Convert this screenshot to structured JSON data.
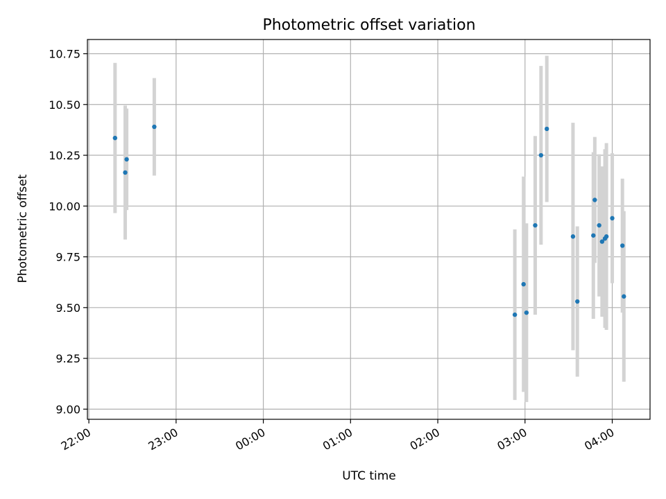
{
  "chart_data": {
    "type": "scatter",
    "title": "Photometric offset variation",
    "xlabel": "UTC time",
    "ylabel": "Photometric offset",
    "x_axis": {
      "kind": "time",
      "range": [
        "21:59",
        "04:26"
      ],
      "ticks": [
        "22:00",
        "23:00",
        "00:00",
        "01:00",
        "02:00",
        "03:00",
        "04:00"
      ]
    },
    "y_axis": {
      "range": [
        8.95,
        10.82
      ],
      "ticks": [
        "9.00",
        "9.25",
        "9.50",
        "9.75",
        "10.00",
        "10.25",
        "10.50",
        "10.75"
      ]
    },
    "grid": true,
    "colors": {
      "points": "#1f77b4",
      "errorbars": "#d3d3d3",
      "grid": "#b0b0b0"
    },
    "points": [
      {
        "t": "22:18",
        "y": 10.335,
        "err": 0.37
      },
      {
        "t": "22:25",
        "y": 10.165,
        "err": 0.33
      },
      {
        "t": "22:26",
        "y": 10.23,
        "err": 0.25
      },
      {
        "t": "22:45",
        "y": 10.39,
        "err": 0.24
      },
      {
        "t": "02:53",
        "y": 9.465,
        "err": 0.42
      },
      {
        "t": "02:59",
        "y": 9.615,
        "err": 0.53
      },
      {
        "t": "03:01",
        "y": 9.475,
        "err": 0.44
      },
      {
        "t": "03:07",
        "y": 9.905,
        "err": 0.44
      },
      {
        "t": "03:11",
        "y": 10.25,
        "err": 0.44
      },
      {
        "t": "03:15",
        "y": 10.38,
        "err": 0.36
      },
      {
        "t": "03:33",
        "y": 9.85,
        "err": 0.56
      },
      {
        "t": "03:36",
        "y": 9.53,
        "err": 0.37
      },
      {
        "t": "03:47",
        "y": 9.855,
        "err": 0.41
      },
      {
        "t": "03:48",
        "y": 10.03,
        "err": 0.31
      },
      {
        "t": "03:51",
        "y": 9.905,
        "err": 0.35
      },
      {
        "t": "03:53",
        "y": 9.825,
        "err": 0.37
      },
      {
        "t": "03:55",
        "y": 9.84,
        "err": 0.44
      },
      {
        "t": "03:56",
        "y": 9.85,
        "err": 0.46
      },
      {
        "t": "04:00",
        "y": 9.94,
        "err": 0.32
      },
      {
        "t": "04:07",
        "y": 9.805,
        "err": 0.33
      },
      {
        "t": "04:08",
        "y": 9.555,
        "err": 0.42
      }
    ]
  }
}
